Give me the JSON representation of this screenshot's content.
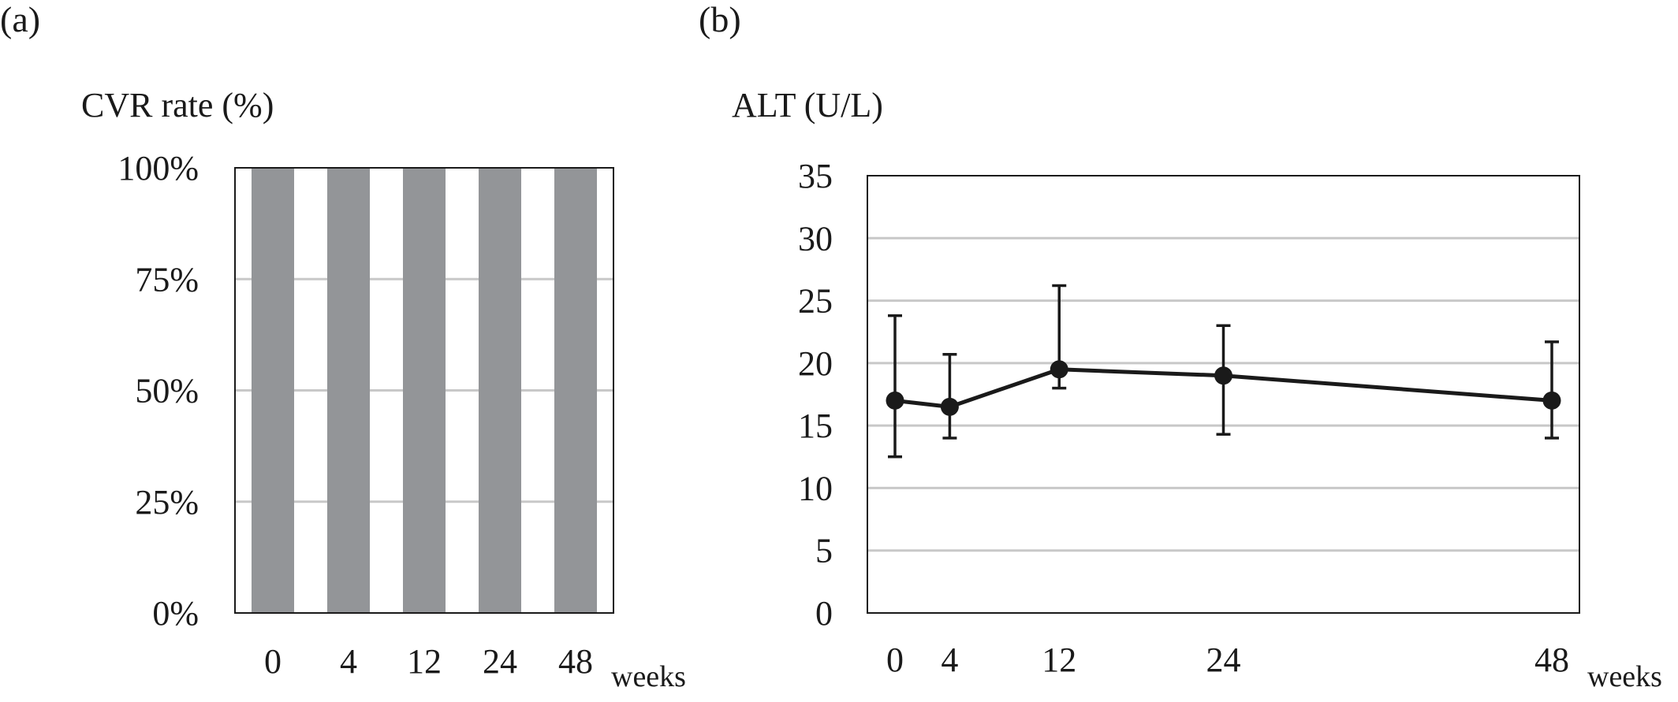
{
  "chart_data": [
    {
      "panel_label": "(a)",
      "type": "bar",
      "title": "",
      "ylabel": "CVR rate (%)",
      "xlabel": "weeks",
      "categories": [
        "0",
        "4",
        "12",
        "24",
        "48"
      ],
      "values": [
        100,
        100,
        100,
        100,
        100
      ],
      "ylim": [
        0,
        100
      ],
      "yticks": [
        "0%",
        "25%",
        "50%",
        "75%",
        "100%"
      ],
      "ytick_values": [
        0,
        25,
        50,
        75,
        100
      ],
      "bar_color": "#939598",
      "grid": true
    },
    {
      "panel_label": "(b)",
      "type": "line",
      "title": "",
      "ylabel": "ALT (U/L)",
      "xlabel": "weeks",
      "x": [
        0,
        4,
        12,
        24,
        48
      ],
      "x_tick_labels": [
        "0",
        "4",
        "12",
        "24",
        "48"
      ],
      "y": [
        17.0,
        16.5,
        19.5,
        19.0,
        17.0
      ],
      "error_upper": [
        23.8,
        20.7,
        26.2,
        23.0,
        21.7
      ],
      "error_lower": [
        12.5,
        14.0,
        18.0,
        14.3,
        14.0
      ],
      "ylim": [
        0,
        35
      ],
      "yticks": [
        "0",
        "5",
        "10",
        "15",
        "20",
        "25",
        "30",
        "35"
      ],
      "ytick_values": [
        0,
        5,
        10,
        15,
        20,
        25,
        30,
        35
      ],
      "line_color": "#1a1a1a",
      "grid": true
    }
  ]
}
